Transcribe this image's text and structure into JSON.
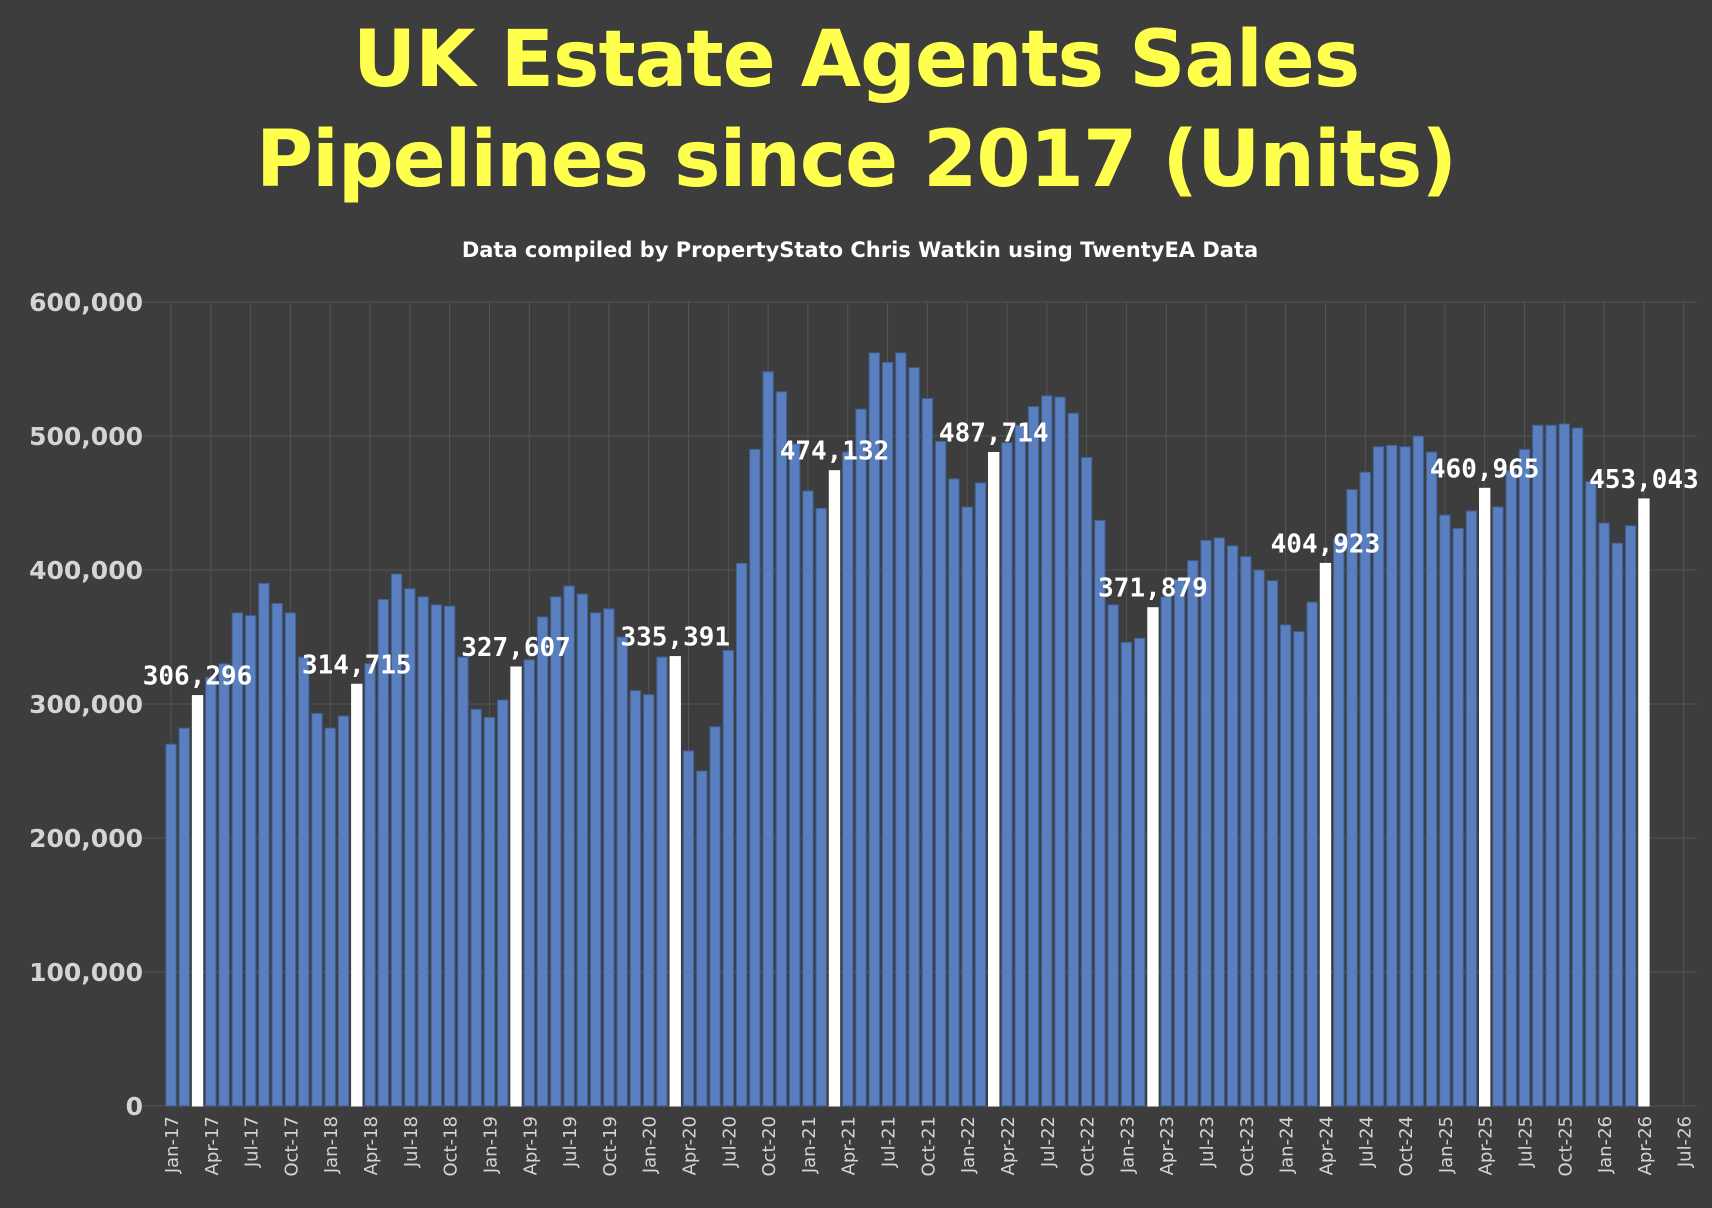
{
  "title_line1": "UK Estate Agents Sales",
  "title_line2": "Pipelines since 2017 (Units)",
  "subtitle": "Data compiled by PropertyStato Chris Watkin using TwentyEA Data",
  "colors": {
    "background": "#3d3d3d",
    "title": "#ffff4d",
    "bar": "#5a7fbf",
    "highlight_bar": "#ffffff",
    "gridline": "#555555"
  },
  "chart_data": {
    "type": "bar",
    "title": "UK Estate Agents Sales Pipelines since 2017 (Units)",
    "subtitle": "Data compiled by PropertyStato Chris Watkin using TwentyEA Data",
    "xlabel": "",
    "ylabel": "",
    "ylim": [
      0,
      600000
    ],
    "grid": true,
    "legend": "none",
    "yticks": [
      "0",
      "100,000",
      "200,000",
      "300,000",
      "400,000",
      "500,000",
      "600,000"
    ],
    "xticks": [
      "Jan-17",
      "Apr-17",
      "Jul-17",
      "Oct-17",
      "Jan-18",
      "Apr-18",
      "Jul-18",
      "Oct-18",
      "Jan-19",
      "Apr-19",
      "Jul-19",
      "Oct-19",
      "Jan-20",
      "Apr-20",
      "Jul-20",
      "Oct-20",
      "Jan-21",
      "Apr-21",
      "Jul-21",
      "Oct-21",
      "Jan-22",
      "Apr-22",
      "Jul-22",
      "Oct-22",
      "Jan-23",
      "Apr-23",
      "Jul-23",
      "Oct-23",
      "Jan-24",
      "Apr-24",
      "Jul-24",
      "Oct-24",
      "Jan-25",
      "Apr-25",
      "Jul-25",
      "Oct-25",
      "Jan-26",
      "Apr-26",
      "Jul-26"
    ],
    "first_month": "Jan-17",
    "values": [
      270000,
      282000,
      306296,
      320000,
      330000,
      368000,
      366000,
      390000,
      375000,
      368000,
      335000,
      293000,
      282000,
      291000,
      314715,
      330000,
      378000,
      397000,
      386000,
      380000,
      374000,
      373000,
      335000,
      296000,
      290000,
      303000,
      327607,
      333000,
      365000,
      380000,
      388000,
      382000,
      368000,
      371000,
      350000,
      310000,
      307000,
      335000,
      335391,
      265000,
      250000,
      283000,
      340000,
      405000,
      490000,
      548000,
      533000,
      494000,
      459000,
      446000,
      474132,
      488000,
      520000,
      562000,
      555000,
      562000,
      551000,
      528000,
      496000,
      468000,
      447000,
      465000,
      487714,
      495000,
      508000,
      522000,
      530000,
      529000,
      517000,
      484000,
      437000,
      374000,
      346000,
      349000,
      371879,
      380000,
      393000,
      407000,
      422000,
      424000,
      418000,
      410000,
      400000,
      392000,
      359000,
      354000,
      376000,
      404923,
      423000,
      460000,
      473000,
      492000,
      493000,
      492000,
      500000,
      488000,
      441000,
      431000,
      444000,
      460965,
      447000,
      474000,
      490000,
      508000,
      508000,
      509000,
      506000,
      466000,
      435000,
      420000,
      433000,
      453043
    ],
    "highlighted": [
      {
        "month": "Mar-17",
        "value": 306296,
        "label": "306,296"
      },
      {
        "month": "Mar-18",
        "value": 314715,
        "label": "314,715"
      },
      {
        "month": "Mar-19",
        "value": 327607,
        "label": "327,607"
      },
      {
        "month": "Mar-20",
        "value": 335391,
        "label": "335,391"
      },
      {
        "month": "Mar-21",
        "value": 474132,
        "label": "474,132"
      },
      {
        "month": "Mar-22",
        "value": 487714,
        "label": "487,714"
      },
      {
        "month": "Mar-23",
        "value": 371879,
        "label": "371,879"
      },
      {
        "month": "Apr-24",
        "value": 404923,
        "label": "404,923"
      },
      {
        "month": "Apr-25",
        "value": 460965,
        "label": "460,965"
      },
      {
        "month": "Apr-26",
        "value": 453043,
        "label": "453,043"
      }
    ]
  }
}
